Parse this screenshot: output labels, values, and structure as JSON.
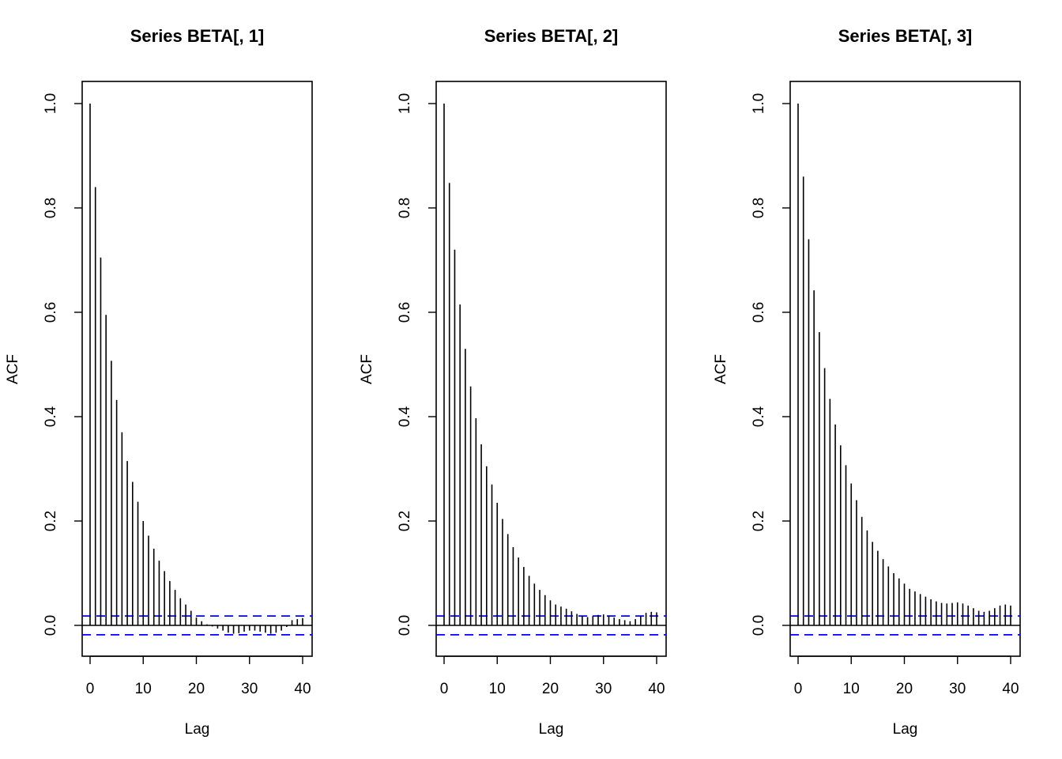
{
  "chart_data": [
    {
      "type": "bar",
      "title": "Series  BETA[, 1]",
      "xlabel": "Lag",
      "ylabel": "ACF",
      "xlim": [
        0,
        40
      ],
      "ylim": [
        -0.06,
        1.0
      ],
      "xticks": [
        "0",
        "10",
        "20",
        "30",
        "40"
      ],
      "yticks": [
        "0.0",
        "0.2",
        "0.4",
        "0.6",
        "0.8",
        "1.0"
      ],
      "ci_bound": 0.018,
      "lags": [
        0,
        1,
        2,
        3,
        4,
        5,
        6,
        7,
        8,
        9,
        10,
        11,
        12,
        13,
        14,
        15,
        16,
        17,
        18,
        19,
        20,
        21,
        22,
        23,
        24,
        25,
        26,
        27,
        28,
        29,
        30,
        31,
        32,
        33,
        34,
        35,
        36,
        37,
        38,
        39,
        40
      ],
      "values": [
        1.0,
        0.84,
        0.705,
        0.595,
        0.507,
        0.432,
        0.37,
        0.315,
        0.275,
        0.237,
        0.2,
        0.172,
        0.147,
        0.124,
        0.104,
        0.085,
        0.068,
        0.052,
        0.04,
        0.028,
        0.015,
        0.008,
        0.002,
        -0.002,
        -0.006,
        -0.01,
        -0.014,
        -0.016,
        -0.015,
        -0.012,
        -0.01,
        -0.01,
        -0.012,
        -0.014,
        -0.016,
        -0.014,
        -0.01,
        -0.003,
        0.01,
        0.012,
        0.014
      ]
    },
    {
      "type": "bar",
      "title": "Series  BETA[, 2]",
      "xlabel": "Lag",
      "ylabel": "ACF",
      "xlim": [
        0,
        40
      ],
      "ylim": [
        -0.06,
        1.0
      ],
      "xticks": [
        "0",
        "10",
        "20",
        "30",
        "40"
      ],
      "yticks": [
        "0.0",
        "0.2",
        "0.4",
        "0.6",
        "0.8",
        "1.0"
      ],
      "ci_bound": 0.018,
      "lags": [
        0,
        1,
        2,
        3,
        4,
        5,
        6,
        7,
        8,
        9,
        10,
        11,
        12,
        13,
        14,
        15,
        16,
        17,
        18,
        19,
        20,
        21,
        22,
        23,
        24,
        25,
        26,
        27,
        28,
        29,
        30,
        31,
        32,
        33,
        34,
        35,
        36,
        37,
        38,
        39,
        40
      ],
      "values": [
        1.0,
        0.848,
        0.72,
        0.615,
        0.53,
        0.458,
        0.397,
        0.347,
        0.305,
        0.27,
        0.235,
        0.204,
        0.175,
        0.15,
        0.13,
        0.112,
        0.095,
        0.08,
        0.068,
        0.058,
        0.048,
        0.04,
        0.036,
        0.032,
        0.027,
        0.022,
        0.018,
        0.016,
        0.018,
        0.02,
        0.021,
        0.019,
        0.015,
        0.012,
        0.01,
        0.008,
        0.012,
        0.018,
        0.024,
        0.026,
        0.025
      ]
    },
    {
      "type": "bar",
      "title": "Series  BETA[, 3]",
      "xlabel": "Lag",
      "ylabel": "ACF",
      "xlim": [
        0,
        40
      ],
      "ylim": [
        -0.06,
        1.0
      ],
      "xticks": [
        "0",
        "10",
        "20",
        "30",
        "40"
      ],
      "yticks": [
        "0.0",
        "0.2",
        "0.4",
        "0.6",
        "0.8",
        "1.0"
      ],
      "ci_bound": 0.018,
      "lags": [
        0,
        1,
        2,
        3,
        4,
        5,
        6,
        7,
        8,
        9,
        10,
        11,
        12,
        13,
        14,
        15,
        16,
        17,
        18,
        19,
        20,
        21,
        22,
        23,
        24,
        25,
        26,
        27,
        28,
        29,
        30,
        31,
        32,
        33,
        34,
        35,
        36,
        37,
        38,
        39,
        40
      ],
      "values": [
        1.0,
        0.86,
        0.74,
        0.642,
        0.562,
        0.493,
        0.434,
        0.385,
        0.345,
        0.307,
        0.272,
        0.24,
        0.208,
        0.182,
        0.16,
        0.143,
        0.127,
        0.113,
        0.1,
        0.09,
        0.08,
        0.07,
        0.065,
        0.06,
        0.055,
        0.05,
        0.046,
        0.043,
        0.042,
        0.043,
        0.044,
        0.042,
        0.038,
        0.033,
        0.028,
        0.026,
        0.028,
        0.033,
        0.038,
        0.04,
        0.038
      ]
    }
  ],
  "colors": {
    "bars": "#000000",
    "ci_line": "#0000ee",
    "frame": "#000000"
  }
}
